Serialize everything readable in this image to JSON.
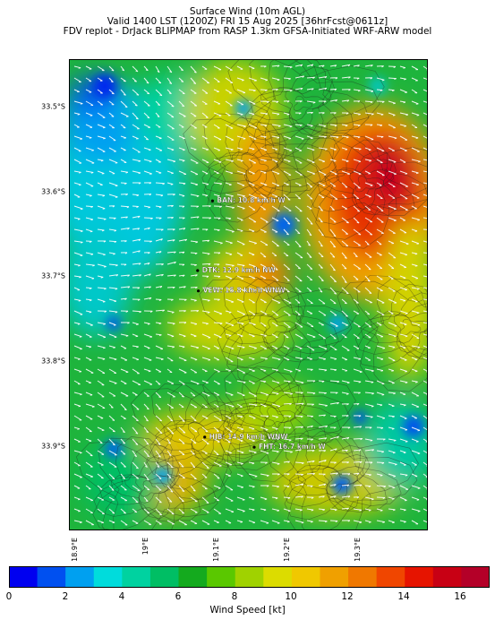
{
  "title": {
    "line1": "Surface Wind (10m AGL)",
    "line2": "Valid 1400 LST (1200Z) FRI 15 Aug 2025 [36hrFcst@0611z]",
    "line3": "FDV replot - DrJack BLIPMAP from RASP 1.3km GFSA-Initiated WRF-ARW model"
  },
  "axes": {
    "y_ticks": [
      {
        "label": "33.5°S",
        "lat": -33.5
      },
      {
        "label": "33.6°S",
        "lat": -33.6
      },
      {
        "label": "33.7°S",
        "lat": -33.7
      },
      {
        "label": "33.8°S",
        "lat": -33.8
      },
      {
        "label": "33.9°S",
        "lat": -33.9
      }
    ],
    "x_ticks": [
      {
        "label": "18.9°E",
        "lon": 18.9
      },
      {
        "label": "19°E",
        "lon": 19.0
      },
      {
        "label": "19.1°E",
        "lon": 19.1
      },
      {
        "label": "19.2°E",
        "lon": 19.2
      },
      {
        "label": "19.3°E",
        "lon": 19.3
      }
    ]
  },
  "sites": [
    {
      "label": "BAN: 10.8 km/h W",
      "lon": 19.098,
      "lat": -33.611
    },
    {
      "label": "DTK: 12.9 km/h NW",
      "lon": 19.077,
      "lat": -33.693
    },
    {
      "label": "VEW: 15.8 km/h WNW",
      "lon": 19.078,
      "lat": -33.717
    },
    {
      "label": "HJB: 14.9 km/h WNW",
      "lon": 19.087,
      "lat": -33.889
    },
    {
      "label": "FHT: 16.7 km/h W",
      "lon": 19.157,
      "lat": -33.901
    }
  ],
  "colorbar": {
    "label": "Wind Speed [kt]",
    "ticks": [
      "0",
      "2",
      "4",
      "6",
      "8",
      "10",
      "12",
      "14",
      "16"
    ],
    "colors": [
      "#0000f0",
      "#0050f0",
      "#00a0f0",
      "#00dcdc",
      "#00d2a0",
      "#00be64",
      "#14aa1e",
      "#5ac800",
      "#a0d200",
      "#dcdc00",
      "#f0c800",
      "#f0a000",
      "#f07800",
      "#f04600",
      "#e61400",
      "#c80014",
      "#b40028"
    ]
  }
}
